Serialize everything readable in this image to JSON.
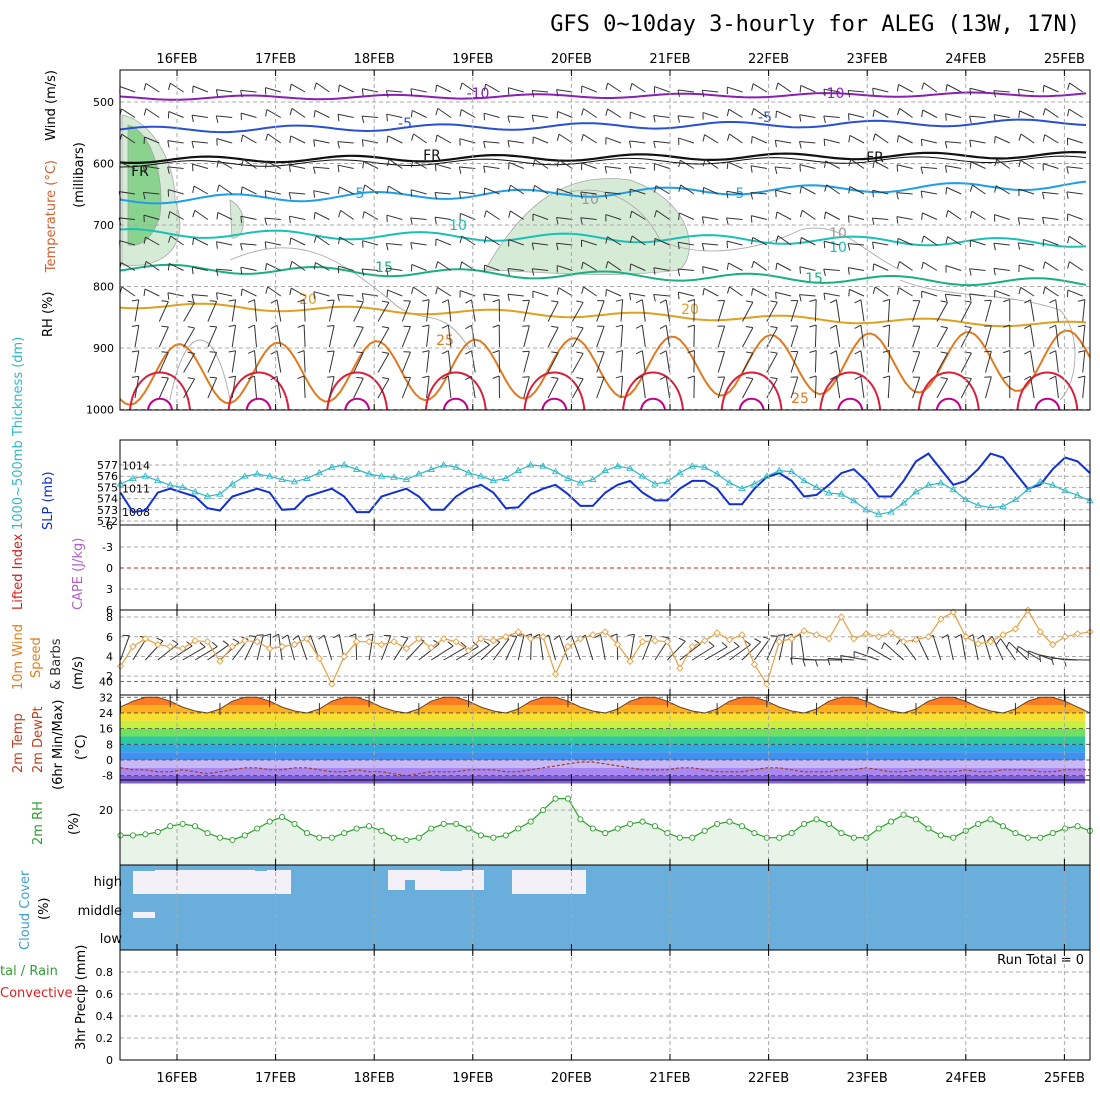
{
  "title": "GFS 0~10day 3-hourly for ALEG (13W, 17N)",
  "dates": [
    "16FEB",
    "17FEB",
    "18FEB",
    "19FEB",
    "20FEB",
    "21FEB",
    "22FEB",
    "23FEB",
    "24FEB",
    "25FEB"
  ],
  "colors": {
    "grid": "#aaaaaa",
    "wind_barb": "#333333",
    "rh_fill": "#7ccf82",
    "t_m10": "#8a1fb5",
    "t_m5": "#2850d0",
    "t_fr": "#111111",
    "t_5": "#1e9ee8",
    "t_10": "#18c0b8",
    "t_15": "#18b080",
    "t_20": "#e0a020",
    "t_25": "#e07a20",
    "t_30": "#d81e3c",
    "slp": "#1030d0",
    "thickness": "#30b8c8",
    "wind10": "#e8a040",
    "rh2m": "#30a030",
    "cloud": "#6aaedc",
    "cape_line": "#d02020"
  },
  "panels": {
    "upper": {
      "ylabel_wind": "Wind (m/s)",
      "ylabel_temp": "Temperature (°C)",
      "ylabel_rh": "RH (%)",
      "ylabel_mb": "(millibars)",
      "yticks": [
        "500",
        "600",
        "700",
        "800",
        "900",
        "1000"
      ],
      "contour_labels": [
        "-10",
        "-10",
        "-5",
        "-5",
        "FR",
        "FR",
        "FR",
        "5",
        "5",
        "10",
        "10",
        "10",
        "10",
        "15",
        "15",
        "20",
        "20",
        "25",
        "25"
      ]
    },
    "slp": {
      "ylabel_thick": "1000~500mb Thickness (dm)",
      "ylabel_slp": "SLP (mb)",
      "thick_ticks": [
        "577",
        "576",
        "575",
        "574",
        "573",
        "572"
      ],
      "slp_ticks": [
        "1014",
        "1011",
        "1008"
      ]
    },
    "li": {
      "ylabel_li": "Lifted Index",
      "ylabel_cape": "CAPE (J/kg)",
      "ticks": [
        "-6",
        "-3",
        "0",
        "3",
        "6"
      ]
    },
    "wind10": {
      "ylabel1": "10m Wind",
      "ylabel2": "Speed",
      "ylabel3": "& Barbs",
      "ylabel_unit": "(m/s)",
      "ticks": [
        "8",
        "6",
        "4",
        "2"
      ]
    },
    "temp2m": {
      "ylabel1": "2m Temp",
      "ylabel2": "2m DewPt",
      "ylabel3": "(6hr Min/Max)",
      "ylabel_unit": "(°C)",
      "ticks": [
        "40",
        "32",
        "24",
        "16",
        "8",
        "0",
        "-8"
      ]
    },
    "rh2m": {
      "ylabel": "2m RH",
      "ylabel_unit": "(%)",
      "ticks": [
        "20"
      ]
    },
    "cloud": {
      "ylabel": "Cloud Cover",
      "ylabel_unit": "(%)",
      "levels": [
        "high",
        "middle",
        "low"
      ]
    },
    "precip": {
      "ylabel1": "tal / Rain",
      "ylabel2": "Convective",
      "ylabel_unit": "3hr Precip (mm)",
      "ticks": [
        "0.8",
        "0.6",
        "0.4",
        "0.2",
        "0"
      ],
      "run_total": "Run Total = 0"
    }
  },
  "chart_data": [
    {
      "type": "line",
      "name_panel": "sea-level-pressure",
      "series": [
        {
          "name": "SLP (mb)",
          "values": [
            1010.5,
            1008,
            1008.2,
            1010.5,
            1011,
            1010.5,
            1010,
            1008.5,
            1008.2,
            1010,
            1010.5,
            1011,
            1010.5,
            1008.3,
            1008.4,
            1010,
            1010.5,
            1011,
            1010,
            1008,
            1008,
            1010,
            1010.5,
            1011,
            1010,
            1008.3,
            1008.3,
            1010,
            1011,
            1011.5,
            1010.5,
            1008.5,
            1008.6,
            1010.3,
            1011,
            1011.5,
            1010.3,
            1008.8,
            1008.8,
            1010.5,
            1011.5,
            1012,
            1010.5,
            1009.5,
            1009.5,
            1011,
            1012,
            1012,
            1011,
            1009,
            1009,
            1011,
            1012.5,
            1013,
            1012,
            1010,
            1010.2,
            1011.5,
            1013,
            1013.5,
            1012,
            1010,
            1010,
            1012,
            1014.5,
            1015.5,
            1013.5,
            1011.5,
            1012,
            1013.5,
            1015.5,
            1015,
            1013,
            1011,
            1011.5,
            1013.5,
            1015,
            1014.5,
            1013
          ]
        },
        {
          "name": "Thickness (dm)",
          "values": [
            575.3,
            575.8,
            576,
            575.6,
            575.2,
            575.0,
            574.6,
            574.2,
            574.4,
            575.3,
            576.0,
            576.2,
            576.0,
            575.7,
            575.5,
            575.8,
            576.3,
            576.8,
            577.0,
            576.6,
            576.2,
            576.0,
            575.9,
            575.7,
            576.2,
            576.6,
            577.0,
            576.8,
            576.3,
            576.0,
            575.6,
            575.8,
            576.5,
            577.0,
            576.9,
            576.4,
            575.8,
            575.4,
            575.7,
            576.5,
            576.9,
            576.7,
            576.0,
            575.3,
            575.5,
            576.3,
            576.9,
            576.8,
            576.2,
            575.4,
            574.9,
            575.3,
            576.0,
            576.5,
            576.4,
            575.6,
            575.0,
            574.5,
            574.4,
            573.8,
            573.0,
            572.6,
            572.8,
            573.6,
            574.6,
            575.2,
            575.4,
            574.8,
            573.9,
            573.4,
            573.2,
            573.3,
            573.9,
            574.8,
            575.5,
            575.2,
            574.7,
            574.3,
            573.8
          ]
        }
      ]
    },
    {
      "type": "line",
      "name_panel": "10m-wind-speed",
      "series": [
        {
          "name": "10m Wind Speed (m/s)",
          "values": [
            3,
            5,
            5.8,
            5.2,
            5,
            4.8,
            5.6,
            5.5,
            3.5,
            5,
            5.6,
            5.5,
            4.8,
            5,
            5.2,
            5.8,
            3.8,
            1.2,
            4,
            5.5,
            5.5,
            5.2,
            5.5,
            4.8,
            5.8,
            4.9,
            5.8,
            5.5,
            4.6,
            5.8,
            5.6,
            6,
            6.5,
            5.8,
            6,
            2.2,
            5,
            5.8,
            6.2,
            6.5,
            5.2,
            3.5,
            5.5,
            5.6,
            5.5,
            2.8,
            5,
            5.6,
            6.4,
            5.7,
            6.2,
            3.2,
            1.2,
            5.5,
            5.8,
            6.6,
            6.2,
            5.8,
            8,
            5.8,
            6.3,
            6,
            6.4,
            5.5,
            5.7,
            6,
            7.8,
            8.5,
            6,
            5.3,
            5.5,
            6.2,
            6.8,
            8.7,
            6.5,
            5.2,
            6,
            6.3,
            6.5
          ]
        }
      ]
    },
    {
      "type": "line",
      "name_panel": "2m-relative-humidity",
      "series": [
        {
          "name": "2m RH (%)",
          "values": [
            9,
            9,
            9.5,
            10.5,
            13,
            14,
            13,
            10,
            8,
            7,
            9,
            12,
            15,
            17,
            14,
            10,
            8,
            8,
            10,
            12,
            13,
            11,
            8,
            7,
            8,
            12,
            14,
            14,
            12,
            9,
            8,
            9,
            12,
            15,
            20,
            25,
            25,
            16,
            12,
            10,
            12,
            14,
            15,
            13,
            10,
            8,
            8,
            11,
            14,
            15,
            13,
            10,
            8,
            8,
            10,
            14,
            16,
            14,
            10,
            8,
            8,
            12,
            15,
            18,
            16,
            12,
            9,
            8,
            11,
            14,
            16,
            13,
            10,
            8,
            8,
            10,
            12,
            13,
            11
          ]
        }
      ]
    },
    {
      "type": "area",
      "name_panel": "2m-temperature-dewpoint",
      "series": [
        {
          "name": "2m Temp (°C)",
          "values": [
            27,
            30,
            32,
            32,
            30,
            27,
            25,
            24,
            26,
            30,
            32,
            32,
            30,
            27,
            25,
            24,
            26,
            30,
            32,
            32,
            30,
            27,
            25,
            24,
            26,
            30,
            32,
            32,
            30,
            27,
            25,
            24,
            26,
            30,
            32,
            32,
            30,
            27,
            25,
            24,
            26,
            30,
            32,
            32,
            30,
            27,
            25,
            24,
            26,
            30,
            32,
            32,
            30,
            27,
            25,
            24,
            26,
            30,
            32,
            32,
            30,
            27,
            25,
            24,
            26,
            30,
            32,
            32,
            30,
            27,
            25,
            24,
            26,
            30,
            32,
            32,
            30,
            27,
            24
          ]
        },
        {
          "name": "2m DewPt (°C)",
          "values": [
            -4,
            -5,
            -5,
            -6,
            -6,
            -5,
            -6,
            -7,
            -6,
            -5,
            -4,
            -4,
            -5,
            -5,
            -4,
            -4,
            -5,
            -6,
            -6,
            -5,
            -6,
            -6,
            -7,
            -8,
            -7,
            -6,
            -6,
            -6,
            -5,
            -5,
            -5,
            -6,
            -6,
            -5,
            -4,
            -3,
            -2,
            -1,
            -1,
            -2,
            -3,
            -4,
            -5,
            -5,
            -5,
            -4,
            -4,
            -5,
            -6,
            -6,
            -6,
            -5,
            -4,
            -4,
            -5,
            -6,
            -6,
            -6,
            -5,
            -5,
            -4,
            -5,
            -6,
            -6,
            -5,
            -5,
            -6,
            -6,
            -5,
            -6,
            -6,
            -5,
            -5,
            -5,
            -6,
            -6,
            -5,
            -5,
            -5
          ]
        }
      ]
    },
    {
      "type": "line",
      "name_panel": "3hr-precipitation",
      "ylim": [
        0,
        1
      ],
      "series": [
        {
          "name": "3hr Precip (mm)",
          "values": []
        }
      ]
    }
  ]
}
